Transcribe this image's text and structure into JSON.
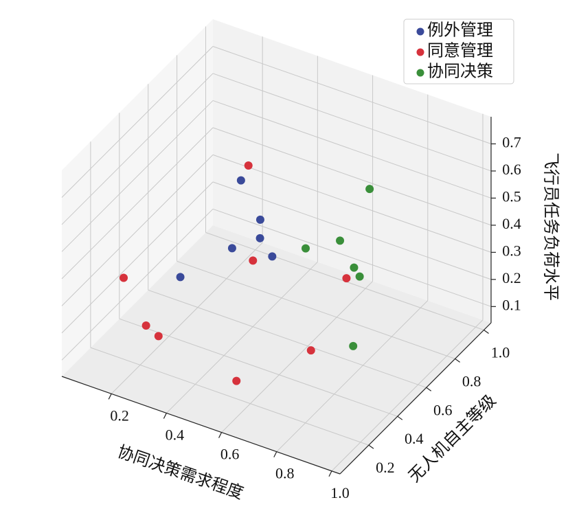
{
  "chart_data": {
    "type": "scatter3d",
    "xlabel": "协同决策需求程度",
    "ylabel": "无人机自主等级",
    "zlabel": "飞行员任务负荷水平",
    "xlim": [
      0.02,
      1.03
    ],
    "ylim": [
      0.0,
      1.05
    ],
    "zlim": [
      0.04,
      0.8
    ],
    "xticks": [
      0.2,
      0.4,
      0.6,
      0.8,
      {
        "value": 1,
        "label": "1.0"
      }
    ],
    "yticks": [
      0.2,
      0.4,
      0.6,
      0.8,
      {
        "value": 1,
        "label": "1.0"
      }
    ],
    "zticks": [
      0.1,
      0.2,
      0.3,
      0.4,
      0.5,
      0.6,
      0.7
    ],
    "grid": true,
    "legend": "upper right",
    "series": [
      {
        "name": "例外管理",
        "color": "#3a4a9a",
        "x": [
          0.31,
          0.38,
          0.4,
          0.33,
          0.46,
          0.21
        ],
        "y": [
          0.69,
          0.69,
          0.65,
          0.59,
          0.62,
          0.46
        ],
        "z": [
          0.5,
          0.38,
          0.34,
          0.31,
          0.31,
          0.23
        ]
      },
      {
        "name": "同意管理",
        "color": "#d6323c",
        "x": [
          0.29,
          0.14,
          0.39,
          0.74,
          0.19,
          0.23,
          0.7,
          0.56
        ],
        "y": [
          0.78,
          0.2,
          0.62,
          0.6,
          0.26,
          0.27,
          0.43,
          0.18
        ],
        "z": [
          0.5,
          0.34,
          0.27,
          0.34,
          0.15,
          0.12,
          0.15,
          0.12
        ]
      },
      {
        "name": "协同决策",
        "color": "#3a8f3a",
        "x": [
          0.73,
          0.68,
          0.55,
          0.71,
          0.72,
          0.78
        ],
        "y": [
          0.78,
          0.67,
          0.68,
          0.71,
          0.73,
          0.57
        ],
        "z": [
          0.57,
          0.42,
          0.34,
          0.31,
          0.27,
          0.12
        ]
      }
    ]
  }
}
